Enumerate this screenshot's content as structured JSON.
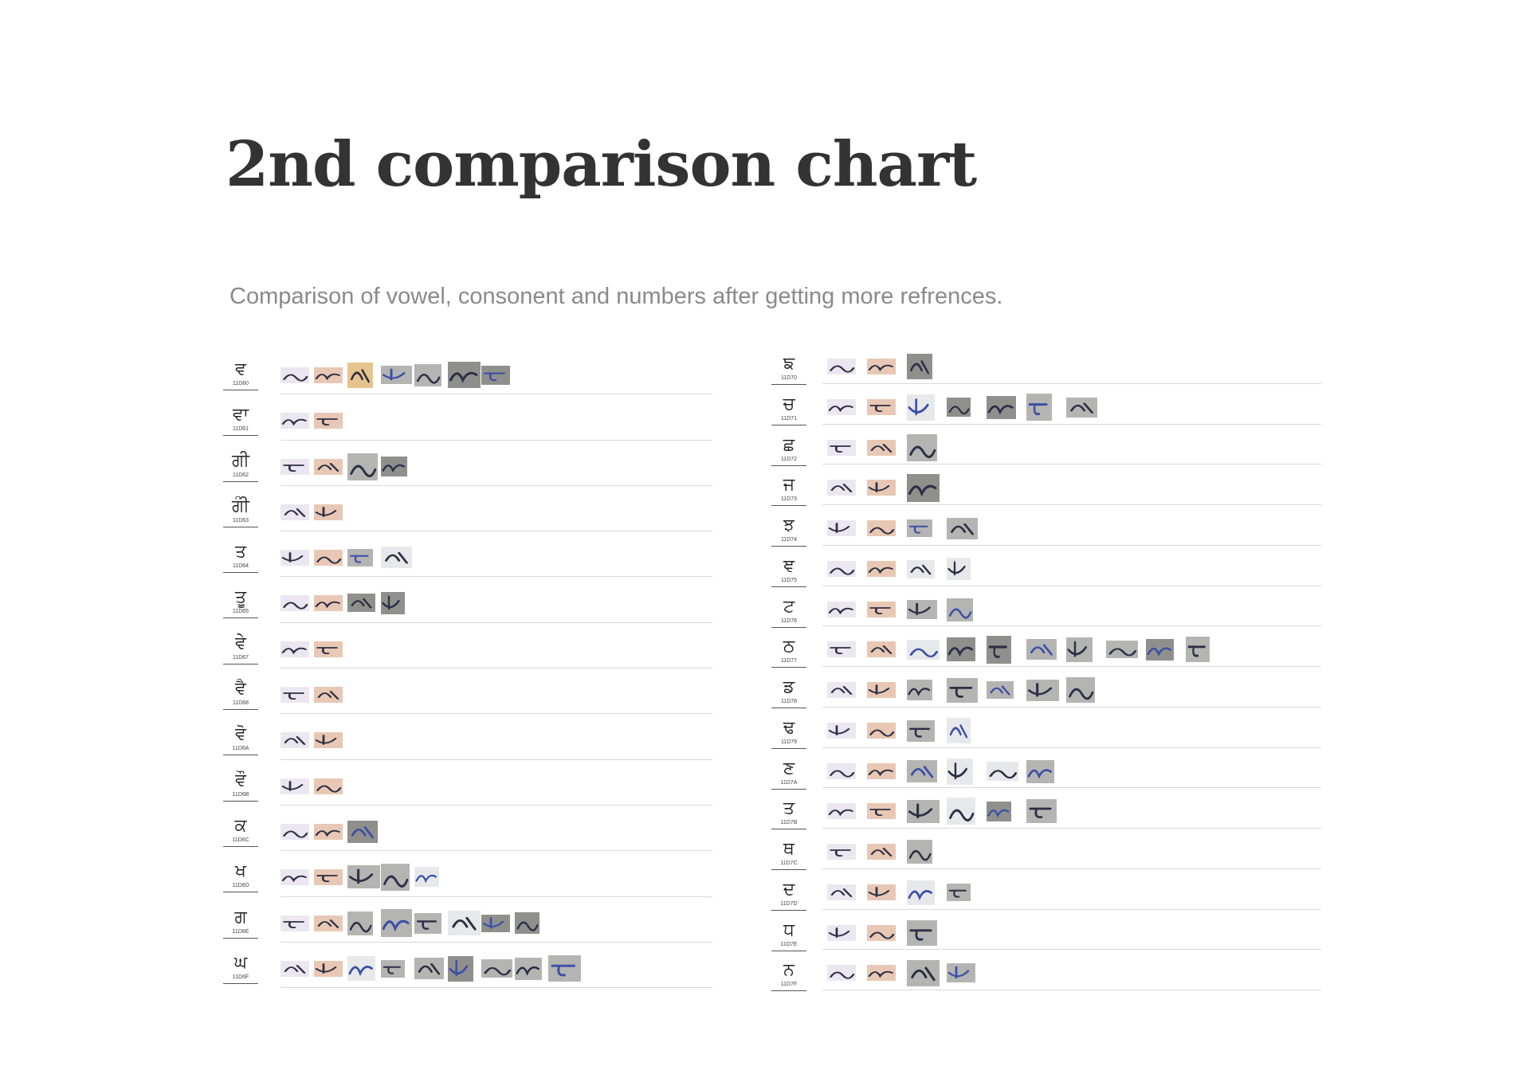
{
  "document": {
    "title": "2nd comparison chart",
    "subtitle": "Comparison of vowel, consonent and numbers after getting more refrences."
  },
  "charts": [
    {
      "rows": [
        {
          "glyph": "ਵ",
          "code": "11D60",
          "samples": [
            "lavender",
            "tan",
            "gold",
            "gray",
            "gray",
            "darkgray",
            "darkgray"
          ]
        },
        {
          "glyph": "ਵਾ",
          "code": "11D61",
          "samples": [
            "lavender",
            "tan"
          ]
        },
        {
          "glyph": "ਗੀ",
          "code": "11D62",
          "samples": [
            "lavender",
            "tan",
            "gray",
            "darkgray"
          ]
        },
        {
          "glyph": "ਗੀੰ",
          "code": "11D63",
          "samples": [
            "lavender",
            "tan"
          ]
        },
        {
          "glyph": "ਤ",
          "code": "11D64",
          "samples": [
            "lavender",
            "tan",
            "gray",
            "pale"
          ]
        },
        {
          "glyph": "ਤੂ",
          "code": "11D65",
          "samples": [
            "lavender",
            "tan",
            "darkgray",
            "darkgray"
          ]
        },
        {
          "glyph": "ਵੇ",
          "code": "11D67",
          "samples": [
            "lavender",
            "tan"
          ]
        },
        {
          "glyph": "ਵੈ",
          "code": "11D68",
          "samples": [
            "lavender",
            "tan"
          ]
        },
        {
          "glyph": "ਵੋ",
          "code": "11D6A",
          "samples": [
            "lavender",
            "tan"
          ]
        },
        {
          "glyph": "ਵੌ",
          "code": "11D6B",
          "samples": [
            "lavender",
            "tan"
          ]
        },
        {
          "glyph": "ਕ",
          "code": "11D6C",
          "samples": [
            "lavender",
            "tan",
            "darkgray"
          ]
        },
        {
          "glyph": "ਖ",
          "code": "11D6D",
          "samples": [
            "lavender",
            "tan",
            "gray",
            "gray",
            "pale"
          ]
        },
        {
          "glyph": "ਗ",
          "code": "11D6E",
          "samples": [
            "lavender",
            "tan",
            "gray",
            "gray",
            "gray",
            "pale",
            "darkgray",
            "darkgray"
          ]
        },
        {
          "glyph": "ਘ",
          "code": "11D6F",
          "samples": [
            "lavender",
            "tan",
            "pale",
            "gray",
            "gray",
            "darkgray",
            "gray",
            "gray",
            "gray"
          ]
        }
      ]
    },
    {
      "rows": [
        {
          "glyph": "ਙ",
          "code": "11D70",
          "samples": [
            "lavender",
            "tan",
            "darkgray"
          ]
        },
        {
          "glyph": "ਚ",
          "code": "11D71",
          "samples": [
            "lavender",
            "tan",
            "pale",
            "darkgray",
            "darkgray",
            "gray",
            "gray"
          ]
        },
        {
          "glyph": "ਛ",
          "code": "11D72",
          "samples": [
            "lavender",
            "tan",
            "gray"
          ]
        },
        {
          "glyph": "ਜ",
          "code": "11D73",
          "samples": [
            "lavender",
            "tan",
            "darkgray"
          ]
        },
        {
          "glyph": "ਝ",
          "code": "11D74",
          "samples": [
            "lavender",
            "tan",
            "gray",
            "gray"
          ]
        },
        {
          "glyph": "ਞ",
          "code": "11D75",
          "samples": [
            "lavender",
            "tan",
            "pale",
            "pale"
          ]
        },
        {
          "glyph": "ਟ",
          "code": "11D76",
          "samples": [
            "lavender",
            "tan",
            "gray",
            "gray"
          ]
        },
        {
          "glyph": "ਠ",
          "code": "11D77",
          "samples": [
            "lavender",
            "tan",
            "pale",
            "darkgray",
            "darkgray",
            "gray",
            "gray",
            "gray",
            "darkgray",
            "gray"
          ]
        },
        {
          "glyph": "ਡ",
          "code": "11D78",
          "samples": [
            "lavender",
            "tan",
            "gray",
            "gray",
            "gray",
            "gray",
            "gray"
          ]
        },
        {
          "glyph": "ਢ",
          "code": "11D79",
          "samples": [
            "lavender",
            "tan",
            "gray",
            "pale"
          ]
        },
        {
          "glyph": "ਣ",
          "code": "11D7A",
          "samples": [
            "lavender",
            "tan",
            "gray",
            "pale",
            "pale",
            "gray"
          ]
        },
        {
          "glyph": "ਤ",
          "code": "11D7B",
          "samples": [
            "lavender",
            "tan",
            "gray",
            "pale",
            "darkgray",
            "gray"
          ]
        },
        {
          "glyph": "ਥ",
          "code": "11D7C",
          "samples": [
            "lavender",
            "tan",
            "gray"
          ]
        },
        {
          "glyph": "ਦ",
          "code": "11D7D",
          "samples": [
            "lavender",
            "tan",
            "pale",
            "gray"
          ]
        },
        {
          "glyph": "ਧ",
          "code": "11D7E",
          "samples": [
            "lavender",
            "tan",
            "gray"
          ]
        },
        {
          "glyph": "ਨ",
          "code": "11D7F",
          "samples": [
            "lavender",
            "tan",
            "gray",
            "gray"
          ]
        }
      ]
    }
  ],
  "colors": {
    "lavender": "#ece6f1",
    "tan": "#e8c8b4",
    "gold": "#e6c48d",
    "gray": "#b4b4b2",
    "darkgray": "#8f8f8c",
    "pale": "#e7e8eb",
    "ink_dark": "#2c2f45",
    "ink_blue": "#3b4fa6",
    "rule": "#d8d8d8"
  }
}
